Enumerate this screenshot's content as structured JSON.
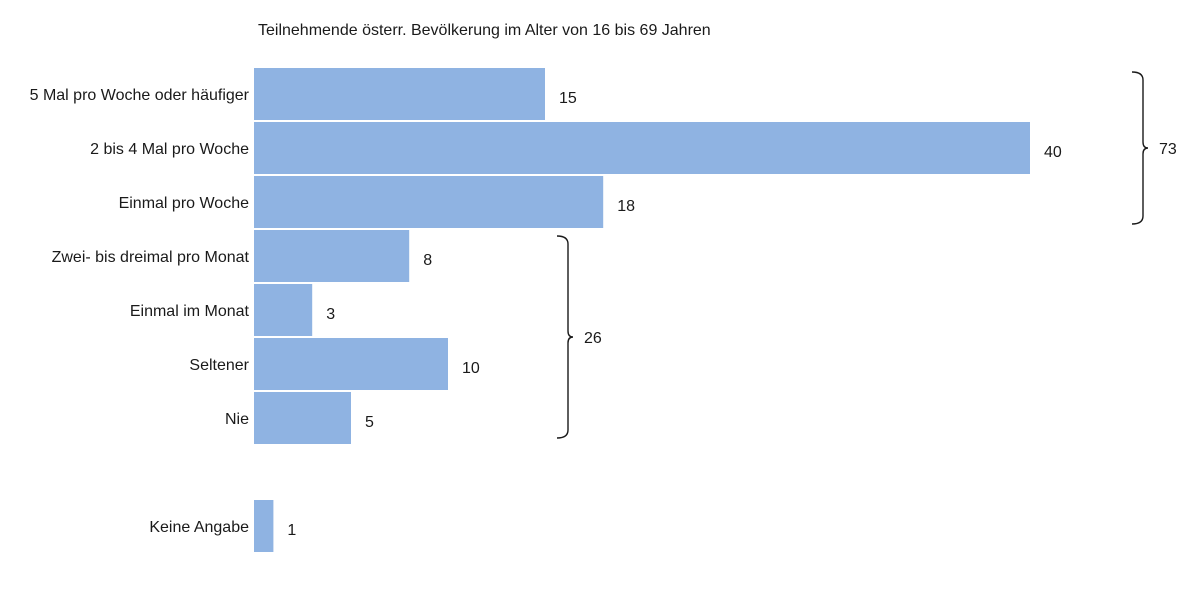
{
  "chart_data": {
    "type": "bar",
    "orientation": "horizontal",
    "title": "Teilnehmende österr. Bevölkerung im Alter von 16 bis 69 Jahren",
    "xlabel": "",
    "ylabel": "",
    "grid": false,
    "legend": "none",
    "bar_color": "#8fb3e2",
    "categories": [
      "5 Mal pro Woche oder häufiger",
      "2 bis 4 Mal pro Woche",
      "Einmal pro Woche",
      "Zwei- bis dreimal pro Monat",
      "Einmal im Monat",
      "Seltener",
      "Nie",
      "Keine Angabe"
    ],
    "values": [
      15,
      40,
      18,
      8,
      3,
      10,
      5,
      1
    ],
    "annotations": [
      {
        "label": "73",
        "from_category": "5 Mal pro Woche oder häufiger",
        "to_category": "Einmal pro Woche"
      },
      {
        "label": "26",
        "from_category": "Zwei- bis dreimal pro Monat",
        "to_category": "Nie"
      }
    ]
  }
}
